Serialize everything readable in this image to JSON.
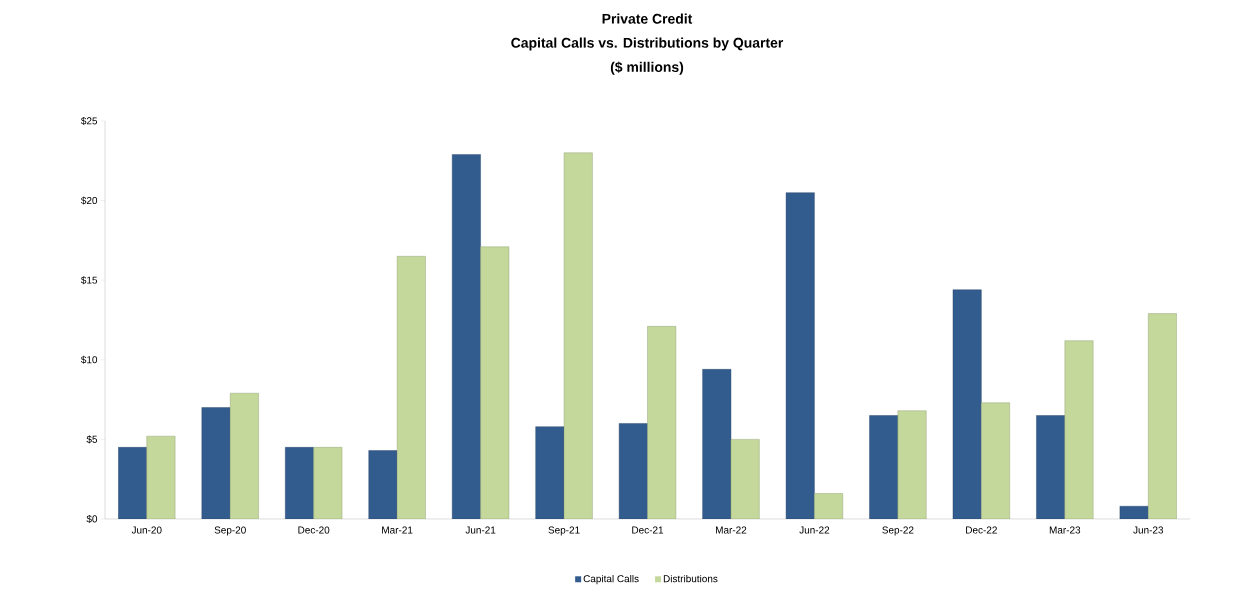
{
  "chart_data": {
    "type": "bar",
    "title": "Private Credit",
    "subtitle": "Capital Calls vs. Distributions by Quarter",
    "annotations": [
      "($ millions)"
    ],
    "categories": [
      "Jun-20",
      "Sep-20",
      "Dec-20",
      "Mar-21",
      "Jun-21",
      "Sep-21",
      "Dec-21",
      "Mar-22",
      "Jun-22",
      "Sep-22",
      "Dec-22",
      "Mar-23",
      "Jun-23"
    ],
    "series": [
      {
        "name": "Capital Calls",
        "color": "#335c8e",
        "values": [
          4.5,
          7.0,
          4.5,
          4.3,
          22.9,
          5.8,
          6.0,
          9.4,
          20.5,
          6.5,
          14.4,
          6.5,
          0.8
        ]
      },
      {
        "name": "Distributions",
        "color": "#c4d89b",
        "values": [
          5.2,
          7.9,
          4.5,
          16.5,
          17.1,
          23.0,
          12.1,
          5.0,
          1.6,
          6.8,
          7.3,
          11.2,
          12.9
        ]
      }
    ],
    "ylim": [
      0,
      25
    ],
    "yticks": [
      {
        "value": 0,
        "label": "$0"
      },
      {
        "value": 5,
        "label": "$5"
      },
      {
        "value": 10,
        "label": "$10"
      },
      {
        "value": 15,
        "label": "$15"
      },
      {
        "value": 20,
        "label": "$20"
      },
      {
        "value": 25,
        "label": "$25"
      }
    ],
    "grid": false,
    "legend": "bottom"
  }
}
